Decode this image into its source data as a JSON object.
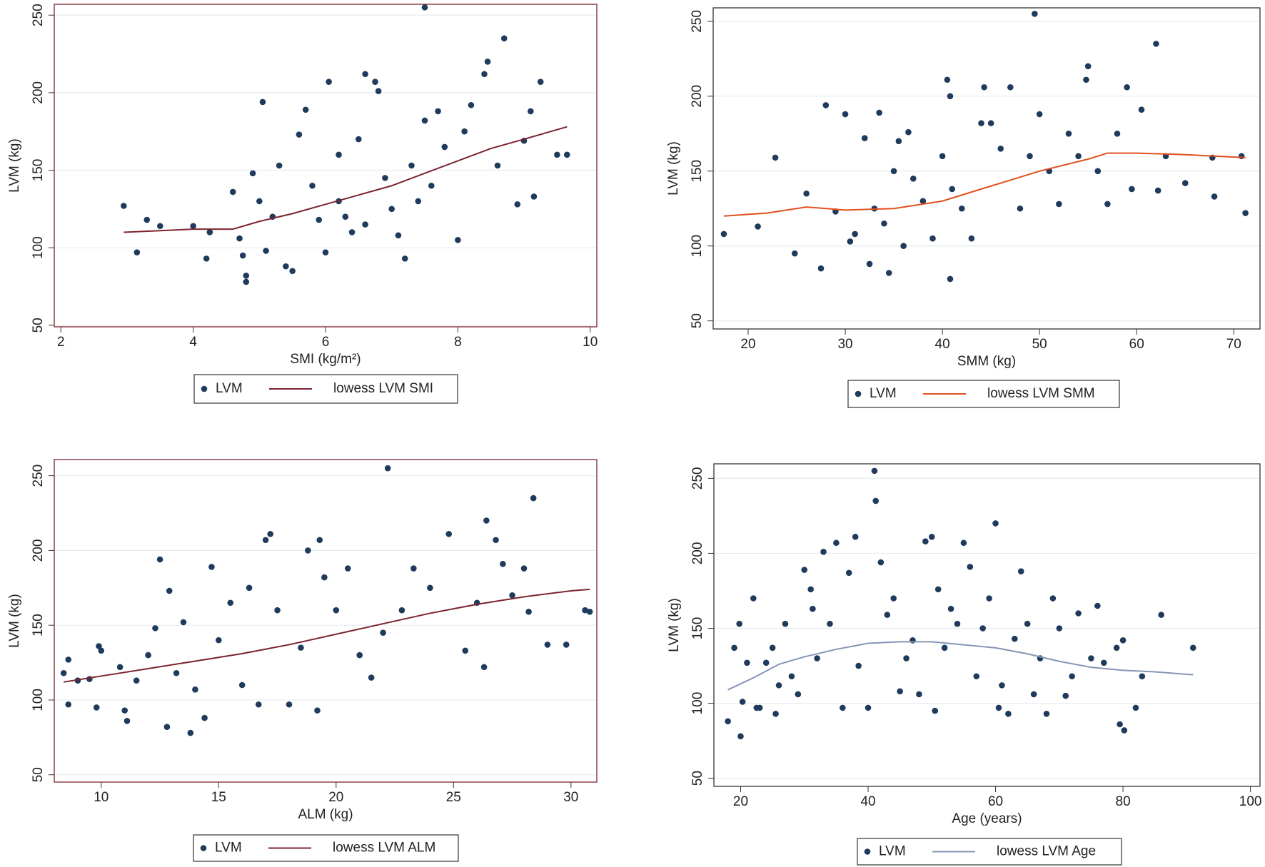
{
  "chart_data": [
    {
      "type": "scatter",
      "x_label": "SMI (kg/m²)",
      "y_label": "LVM (kg)",
      "border": "#7b2430",
      "grid": true,
      "xlim": [
        1.9,
        10.1
      ],
      "ylim": [
        49,
        257
      ],
      "xticks": [
        2,
        4,
        6,
        8,
        10
      ],
      "yticks": [
        50,
        100,
        150,
        200,
        250
      ],
      "series": [
        {
          "name": "LVM",
          "color": "#1f3b5c",
          "x": [
            2.95,
            3.15,
            3.3,
            3.5,
            4.0,
            4.2,
            4.25,
            4.6,
            4.7,
            4.75,
            4.8,
            4.8,
            4.9,
            5.0,
            5.05,
            5.1,
            5.2,
            5.3,
            5.4,
            5.5,
            5.6,
            5.7,
            5.8,
            5.9,
            6.0,
            6.05,
            6.2,
            6.3,
            6.4,
            6.5,
            6.6,
            6.75,
            6.8,
            6.9,
            7.0,
            7.1,
            7.2,
            7.3,
            7.5,
            7.5,
            7.6,
            7.7,
            7.8,
            8.0,
            8.1,
            8.2,
            8.4,
            8.45,
            8.6,
            8.7,
            8.9,
            9.0,
            9.1,
            9.15,
            9.25,
            9.5,
            9.65,
            6.2,
            6.6,
            7.4
          ],
          "values": [
            127,
            97,
            118,
            114,
            114,
            93,
            110,
            136,
            106,
            95,
            82,
            78,
            148,
            130,
            194,
            98,
            120,
            153,
            88,
            85,
            173,
            189,
            140,
            118,
            97,
            207,
            160,
            120,
            110,
            170,
            212,
            207,
            201,
            145,
            125,
            108,
            93,
            153,
            255,
            182,
            140,
            188,
            165,
            105,
            175,
            192,
            212,
            220,
            153,
            235,
            128,
            169,
            188,
            133,
            207,
            160,
            160,
            130,
            115,
            130
          ]
        },
        {
          "name": "lowess LVM SMI",
          "type": "line",
          "color": "#7b2430",
          "x": [
            2.95,
            3.5,
            4.0,
            4.6,
            5.0,
            5.5,
            6.0,
            6.5,
            7.0,
            7.5,
            8.0,
            8.5,
            9.0,
            9.65
          ],
          "values": [
            110,
            111,
            112,
            112,
            117,
            122,
            128,
            134,
            140,
            148,
            156,
            164,
            170,
            178
          ]
        }
      ]
    },
    {
      "type": "scatter",
      "x_label": "SMM (kg)",
      "y_label": "LVM (kg)",
      "border": "#333333",
      "grid": true,
      "xlim": [
        16.4,
        72.7
      ],
      "ylim": [
        44.6,
        259
      ],
      "xticks": [
        20,
        30,
        40,
        50,
        60,
        70
      ],
      "yticks": [
        50,
        100,
        150,
        200,
        250
      ],
      "series": [
        {
          "name": "LVM",
          "color": "#1f3b5c",
          "x": [
            17.5,
            21,
            22.8,
            24.8,
            26,
            27.5,
            28,
            29,
            30,
            30.5,
            31,
            32,
            32.5,
            33,
            33.5,
            34,
            34.5,
            35,
            35.5,
            36,
            36.5,
            37,
            38,
            39,
            40,
            40.5,
            40.8,
            40.8,
            41,
            42,
            43,
            44,
            44.3,
            45,
            46,
            47,
            48,
            49,
            49.5,
            50,
            51,
            52,
            53,
            54,
            55,
            54.8,
            56,
            57,
            58,
            59,
            59.5,
            60.5,
            62,
            62.2,
            63,
            65,
            67.8,
            68,
            70.8,
            71.2
          ],
          "values": [
            108,
            113,
            159,
            95,
            135,
            85,
            194,
            123,
            188,
            103,
            108,
            172,
            88,
            125,
            189,
            115,
            82,
            150,
            170,
            100,
            176,
            145,
            130,
            105,
            160,
            211,
            200,
            78,
            138,
            125,
            105,
            182,
            206,
            182,
            165,
            206,
            125,
            160,
            255,
            188,
            150,
            128,
            175,
            160,
            220,
            211,
            150,
            128,
            175,
            206,
            138,
            191,
            235,
            137,
            160,
            142,
            159,
            133,
            160,
            122
          ]
        },
        {
          "name": "lowess LVM SMM",
          "type": "line",
          "color": "#e0501e",
          "x": [
            17.5,
            22,
            26,
            30,
            35,
            40,
            45,
            50,
            55,
            57,
            60,
            65,
            71.2
          ],
          "values": [
            120,
            122,
            126,
            124,
            125,
            130,
            140,
            150,
            158,
            162,
            162,
            161,
            159
          ]
        }
      ]
    },
    {
      "type": "scatter",
      "x_label": "ALM (kg)",
      "y_label": "LVM (kg)",
      "border": "#7b2430",
      "grid": true,
      "xlim": [
        8.0,
        31.1
      ],
      "ylim": [
        45.1,
        260.8
      ],
      "xticks": [
        10,
        15,
        20,
        25,
        30
      ],
      "yticks": [
        50,
        100,
        150,
        200,
        250
      ],
      "series": [
        {
          "name": "LVM",
          "color": "#1f3b5c",
          "x": [
            8.4,
            8.6,
            8.6,
            9.0,
            9.5,
            9.8,
            9.9,
            10.0,
            10.8,
            11.0,
            11.1,
            11.5,
            12.0,
            12.3,
            12.5,
            12.8,
            12.9,
            13.2,
            13.5,
            13.8,
            14.0,
            14.4,
            14.7,
            15,
            15.5,
            16,
            16.3,
            16.7,
            17.0,
            17.2,
            17.5,
            18,
            18.5,
            18.8,
            19.2,
            19.3,
            19.5,
            20,
            20.5,
            21,
            21.5,
            22,
            22.2,
            22.8,
            23.3,
            24,
            24.8,
            25.5,
            26,
            26.3,
            26.4,
            26.8,
            27.1,
            27.5,
            28,
            28.2,
            28.4,
            29,
            29.8,
            30.6,
            30.8
          ],
          "values": [
            118,
            97,
            127,
            113,
            114,
            95,
            136,
            133,
            122,
            93,
            86,
            113,
            130,
            148,
            194,
            82,
            173,
            118,
            152,
            78,
            107,
            88,
            189,
            140,
            165,
            110,
            175,
            97,
            207,
            211,
            160,
            97,
            135,
            200,
            93,
            207,
            182,
            160,
            188,
            130,
            115,
            145,
            255,
            160,
            188,
            175,
            211,
            133,
            165,
            122,
            220,
            207,
            191,
            170,
            188,
            159,
            235,
            137,
            137,
            160,
            159
          ]
        },
        {
          "name": "lowess LVM ALM",
          "type": "line",
          "color": "#7b2430",
          "x": [
            8.4,
            10,
            12,
            14,
            16,
            18,
            20,
            22,
            24,
            26,
            28,
            30,
            30.8
          ],
          "values": [
            112,
            116,
            121,
            126,
            131,
            137,
            144,
            151,
            158,
            164,
            169,
            173,
            174
          ]
        }
      ]
    },
    {
      "type": "scatter",
      "x_label": "Age (years)",
      "y_label": "LVM (kg)",
      "border": "#333333",
      "grid": true,
      "xlim": [
        15.8,
        101.5
      ],
      "ylim": [
        44.6,
        259.7
      ],
      "xticks": [
        20,
        40,
        60,
        80,
        100
      ],
      "yticks": [
        50,
        100,
        150,
        200,
        250
      ],
      "series": [
        {
          "name": "LVM",
          "color": "#1f3b5c",
          "x": [
            18,
            19,
            19.8,
            20,
            20.3,
            21,
            22,
            22.5,
            23,
            24,
            25,
            25.5,
            26,
            27,
            28,
            29,
            30,
            31,
            31.3,
            32,
            33,
            34,
            35,
            36,
            37,
            38,
            38.5,
            40,
            41,
            41.2,
            42,
            43,
            44,
            45,
            46,
            47,
            48,
            49,
            50,
            50.5,
            51,
            52,
            53,
            54,
            55,
            56,
            57,
            58,
            59,
            60,
            60.5,
            61,
            62,
            63,
            64,
            65,
            66,
            67,
            68,
            69,
            70,
            71,
            72,
            73,
            75,
            76,
            77,
            79,
            79.5,
            80,
            80.2,
            82,
            83,
            86,
            91
          ],
          "values": [
            88,
            137,
            153,
            78,
            101,
            127,
            170,
            97,
            97,
            127,
            137,
            93,
            112,
            153,
            118,
            106,
            189,
            176,
            163,
            130,
            201,
            153,
            207,
            97,
            187,
            211,
            125,
            97,
            255,
            235,
            194,
            159,
            170,
            108,
            130,
            142,
            106,
            208,
            211,
            95,
            176,
            137,
            163,
            153,
            207,
            191,
            118,
            150,
            170,
            220,
            97,
            112,
            93,
            143,
            188,
            153,
            106,
            130,
            93,
            170,
            150,
            105,
            118,
            160,
            130,
            165,
            127,
            137,
            86,
            142,
            82,
            97,
            118,
            159,
            137
          ]
        },
        {
          "name": "lowess LVM Age",
          "type": "line",
          "color": "#8496b4",
          "x": [
            18,
            22,
            26,
            30,
            35,
            40,
            45,
            50,
            55,
            60,
            65,
            70,
            75,
            80,
            85,
            91
          ],
          "values": [
            109,
            117,
            126,
            131,
            136,
            140,
            141,
            141,
            139,
            137,
            133,
            128,
            124,
            122,
            121,
            119
          ]
        }
      ]
    }
  ]
}
